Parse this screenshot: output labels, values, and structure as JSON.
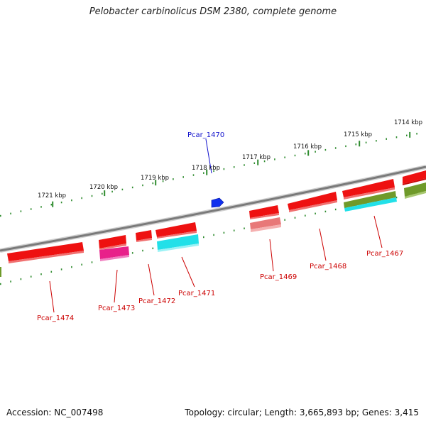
{
  "title": "Pelobacter carbinolicus DSM 2380, complete genome",
  "accession": "Accession: NC_007498",
  "summary": "Topology: circular; Length: 3,665,893 bp; Genes: 3,415",
  "colors": {
    "backbone": "#8c8c8c",
    "scale": "#2e8b2e",
    "gene": "#ee1111",
    "feature_cyan": "#22e0e8",
    "feature_magenta": "#e8208a",
    "feature_olive": "#6f9a2a",
    "feature_pink": "#e87878",
    "feature_blue": "#1030ee",
    "label_red": "#cc0000",
    "label_blue": "#1010cc"
  },
  "scale_ticks": [
    "1721 kbp",
    "1720 kbp",
    "1719 kbp",
    "1718 kbp",
    "1717 kbp",
    "1716 kbp",
    "1715 kbp",
    "1714 kbp"
  ],
  "gene_labels": [
    {
      "text": "Pcar_1470",
      "color": "blue"
    },
    {
      "text": "Pcar_1474",
      "color": "red"
    },
    {
      "text": "Pcar_1473",
      "color": "red"
    },
    {
      "text": "Pcar_1472",
      "color": "red"
    },
    {
      "text": "Pcar_1471",
      "color": "red"
    },
    {
      "text": "Pcar_1469",
      "color": "red"
    },
    {
      "text": "Pcar_1468",
      "color": "red"
    },
    {
      "text": "Pcar_1467",
      "color": "red"
    }
  ]
}
